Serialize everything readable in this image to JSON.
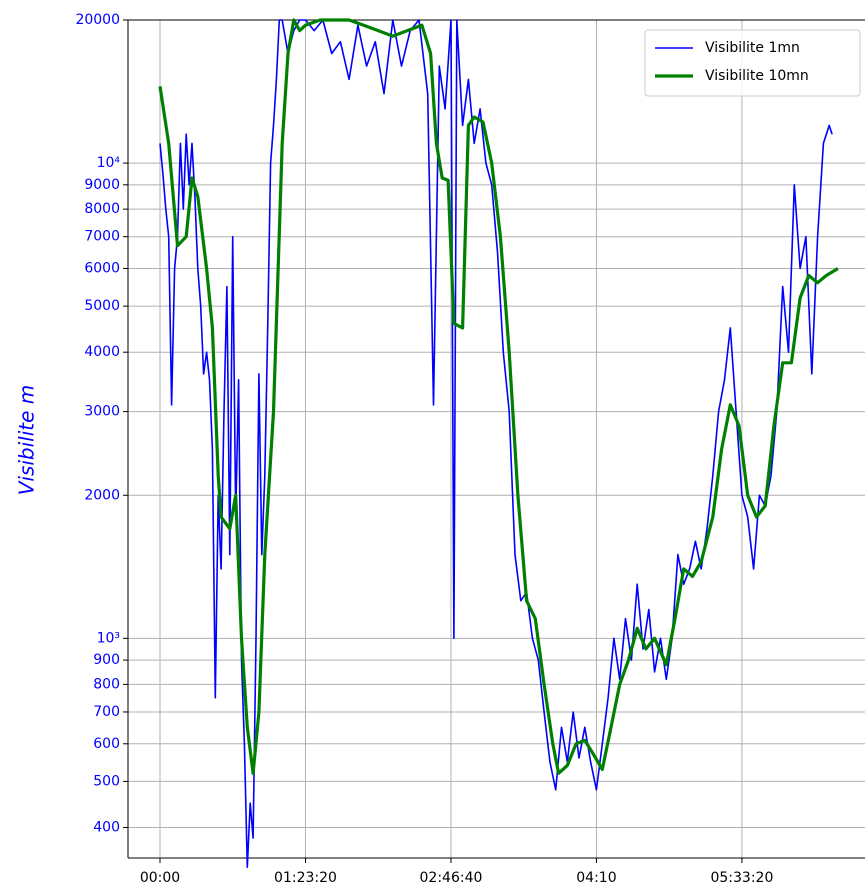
{
  "chart_data": {
    "type": "line",
    "ylabel": "Visibilite  m",
    "log_y": true,
    "grid": true,
    "legend": "upper right",
    "tick_color": "#0000ff",
    "xlim": [
      -1100,
      24230
    ],
    "ylim": [
      345,
      20000
    ],
    "xticks": [
      {
        "value": 0,
        "label": "00:00"
      },
      {
        "value": 5000,
        "label": "01:23:20"
      },
      {
        "value": 10000,
        "label": "02:46:40"
      },
      {
        "value": 15000,
        "label": "04:10"
      },
      {
        "value": 20000,
        "label": "05:33:20"
      }
    ],
    "yticks": [
      400,
      500,
      600,
      700,
      800,
      900,
      {
        "value": 1000,
        "label": "10³"
      },
      2000,
      3000,
      4000,
      5000,
      6000,
      7000,
      8000,
      9000,
      {
        "value": 10000,
        "label": "10⁴"
      },
      20000
    ],
    "series": [
      {
        "name": "Visibilite 1mn",
        "color": "#0000ff",
        "width": 1.6,
        "x": [
          0,
          100,
          200,
          300,
          400,
          500,
          600,
          700,
          800,
          900,
          1000,
          1100,
          1200,
          1300,
          1400,
          1500,
          1600,
          1700,
          1800,
          1900,
          2000,
          2100,
          2200,
          2300,
          2400,
          2500,
          2600,
          2700,
          2800,
          2900,
          3000,
          3100,
          3200,
          3300,
          3400,
          3500,
          3600,
          3700,
          3800,
          3900,
          4000,
          4100,
          4200,
          4400,
          4600,
          4800,
          5000,
          5300,
          5600,
          5900,
          6200,
          6500,
          6800,
          7100,
          7400,
          7700,
          8000,
          8300,
          8600,
          8900,
          9200,
          9400,
          9600,
          9800,
          10000,
          10100,
          10200,
          10400,
          10600,
          10800,
          11000,
          11200,
          11400,
          11600,
          11800,
          12000,
          12200,
          12400,
          12600,
          12800,
          13000,
          13200,
          13400,
          13600,
          13800,
          14000,
          14200,
          14400,
          14600,
          14800,
          15000,
          15200,
          15400,
          15600,
          15800,
          16000,
          16200,
          16400,
          16600,
          16800,
          17000,
          17200,
          17400,
          17600,
          17800,
          18000,
          18200,
          18400,
          18600,
          18800,
          19000,
          19200,
          19400,
          19600,
          19800,
          20000,
          20200,
          20400,
          20600,
          20800,
          21000,
          21200,
          21400,
          21600,
          21800,
          22000,
          22200,
          22400,
          22600,
          22800,
          23000,
          23100
        ],
        "values": [
          11000,
          9500,
          8000,
          7000,
          3100,
          6000,
          7000,
          11000,
          8000,
          11500,
          9000,
          11000,
          8500,
          6000,
          5000,
          3600,
          4000,
          3500,
          2500,
          750,
          2000,
          1400,
          3000,
          5500,
          1500,
          7000,
          1800,
          3500,
          900,
          600,
          330,
          450,
          380,
          1000,
          3600,
          1500,
          2200,
          4500,
          10000,
          12000,
          15000,
          20000,
          20000,
          17000,
          19000,
          20000,
          20000,
          19000,
          20000,
          17000,
          18000,
          15000,
          19500,
          16000,
          18000,
          14000,
          20000,
          16000,
          19000,
          20000,
          14000,
          3100,
          16000,
          13000,
          20000,
          1000,
          20000,
          12000,
          15000,
          11000,
          13000,
          10000,
          9000,
          6500,
          4000,
          3000,
          1500,
          1200,
          1250,
          1000,
          900,
          700,
          550,
          480,
          650,
          550,
          700,
          560,
          650,
          550,
          480,
          600,
          750,
          1000,
          820,
          1100,
          900,
          1300,
          950,
          1150,
          850,
          1000,
          820,
          1000,
          1500,
          1300,
          1400,
          1600,
          1400,
          1700,
          2200,
          3000,
          3500,
          4500,
          3000,
          2000,
          1800,
          1400,
          2000,
          1900,
          2200,
          3000,
          5500,
          4000,
          9000,
          6000,
          7000,
          3600,
          7000,
          11000,
          12000,
          11500
        ]
      },
      {
        "name": "Visibilite 10mn",
        "color": "#008000",
        "width": 3.2,
        "x": [
          0,
          300,
          600,
          900,
          1100,
          1300,
          1600,
          1800,
          2000,
          2100,
          2400,
          2600,
          2800,
          3000,
          3200,
          3400,
          3600,
          3900,
          4200,
          4400,
          4600,
          4800,
          5000,
          5500,
          6000,
          6500,
          7000,
          7500,
          8000,
          8500,
          9000,
          9300,
          9500,
          9700,
          9900,
          10100,
          10400,
          10600,
          10800,
          11100,
          11400,
          11700,
          12000,
          12300,
          12600,
          12900,
          13200,
          13500,
          13700,
          14000,
          14300,
          14600,
          14900,
          15200,
          15500,
          15800,
          16100,
          16400,
          16700,
          17000,
          17400,
          17700,
          18000,
          18300,
          18600,
          19000,
          19300,
          19600,
          19900,
          20200,
          20500,
          20800,
          21100,
          21400,
          21700,
          22000,
          22300,
          22600,
          22900,
          23300
        ],
        "values": [
          14500,
          11000,
          6700,
          7000,
          9300,
          8500,
          6000,
          4500,
          2200,
          1800,
          1700,
          2000,
          1000,
          650,
          520,
          700,
          1500,
          3000,
          11000,
          17000,
          20000,
          19000,
          19500,
          20000,
          20000,
          20000,
          19500,
          19000,
          18500,
          19000,
          19500,
          17000,
          11000,
          9300,
          9200,
          4600,
          4500,
          12000,
          12500,
          12200,
          10000,
          7000,
          4000,
          2000,
          1200,
          1100,
          800,
          600,
          520,
          540,
          600,
          610,
          570,
          530,
          650,
          800,
          900,
          1050,
          950,
          1000,
          880,
          1100,
          1400,
          1350,
          1450,
          1800,
          2500,
          3100,
          2800,
          2000,
          1800,
          1900,
          2800,
          3800,
          3800,
          5200,
          5800,
          5600,
          5800,
          6000
        ]
      }
    ]
  }
}
